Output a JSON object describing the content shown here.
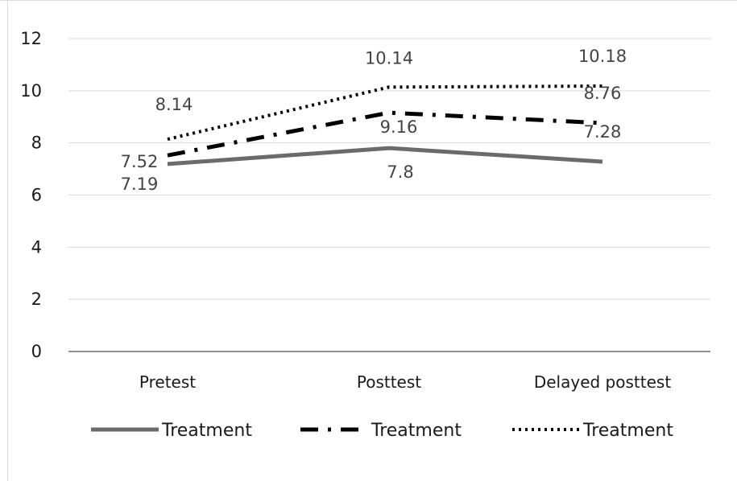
{
  "chart_data": {
    "type": "line",
    "title": "",
    "xlabel": "",
    "ylabel": "",
    "categories": [
      "Pretest",
      "Posttest",
      "Delayed posttest"
    ],
    "y_ticks": [
      "0",
      "2",
      "4",
      "6",
      "8",
      "10",
      "12"
    ],
    "ylim": [
      0,
      12
    ],
    "grid": "horizontal",
    "legend_position": "bottom",
    "series": [
      {
        "name": "Treatment",
        "values": [
          7.19,
          7.8,
          7.28
        ],
        "labels": [
          "7.19",
          "7.8",
          "7.28"
        ],
        "color": "#6b6b6b",
        "line_style": "solid"
      },
      {
        "name": "Treatment",
        "values": [
          7.52,
          9.16,
          8.76
        ],
        "labels": [
          "7.52",
          "9.16",
          "8.76"
        ],
        "color": "#000000",
        "line_style": "dash-dot"
      },
      {
        "name": "Treatment",
        "values": [
          8.14,
          10.14,
          10.18
        ],
        "labels": [
          "8.14",
          "10.14",
          "10.18"
        ],
        "color": "#000000",
        "line_style": "dotted"
      }
    ]
  }
}
